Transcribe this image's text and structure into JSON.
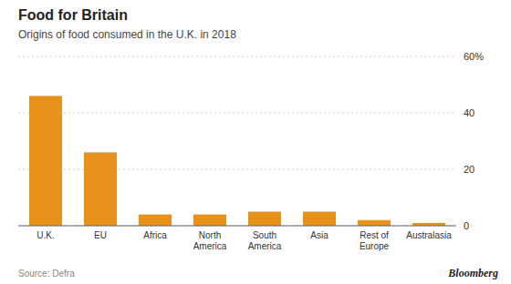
{
  "chart_data": {
    "type": "bar",
    "title": "Food for Britain",
    "subtitle": "Origins of food consumed in the U.K. in 2018",
    "annotations": [
      "Source: Defra",
      "Bloomberg"
    ],
    "categories": [
      "U.K.",
      "EU",
      "Africa",
      "North\nAmerica",
      "South\nAmerica",
      "Asia",
      "Rest of\nEurope",
      "Australasia"
    ],
    "values": [
      46,
      26,
      4,
      4,
      5,
      5,
      2,
      1
    ],
    "color": "#E8921A",
    "ylim": [
      0,
      60
    ],
    "yticks": [
      0,
      20,
      40,
      {
        "value": 60,
        "label": "60%"
      }
    ],
    "grid": true
  }
}
